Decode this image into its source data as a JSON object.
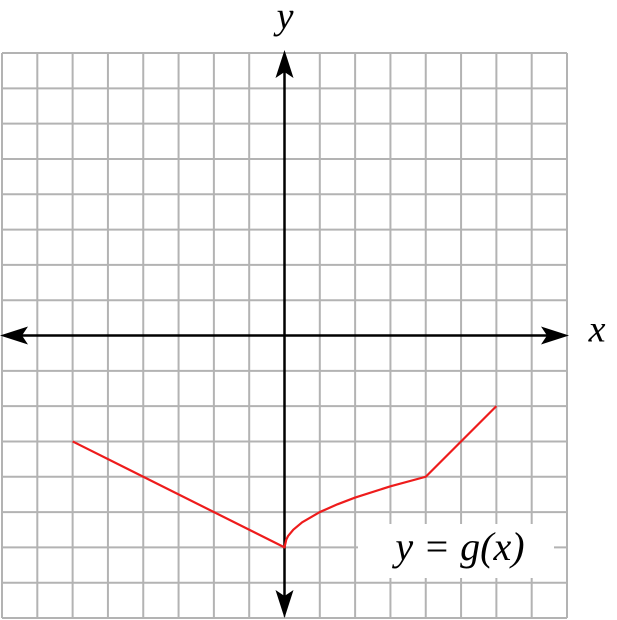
{
  "chart_data": {
    "type": "line",
    "x_label": "x",
    "y_label": "y",
    "annotation": "y = g(x)",
    "xlim": [
      -8,
      8
    ],
    "ylim": [
      -8,
      8
    ],
    "xticks": [
      -8,
      -7,
      -6,
      -5,
      -4,
      -3,
      -2,
      -1,
      0,
      1,
      2,
      3,
      4,
      5,
      6,
      7,
      8
    ],
    "yticks": [
      -8,
      -7,
      -6,
      -5,
      -4,
      -3,
      -2,
      -1,
      0,
      1,
      2,
      3,
      4,
      5,
      6,
      7,
      8
    ],
    "grid": true,
    "series": [
      {
        "name": "g(x)",
        "color": "#ee1c1c",
        "x": [
          -6,
          0,
          0.05,
          0.1,
          0.25,
          0.5,
          1,
          1.5,
          2,
          3,
          4,
          6
        ],
        "values": [
          -3,
          -6,
          -5.78,
          -5.68,
          -5.5,
          -5.29,
          -5,
          -4.78,
          -4.59,
          -4.27,
          -4,
          -2
        ]
      }
    ]
  }
}
